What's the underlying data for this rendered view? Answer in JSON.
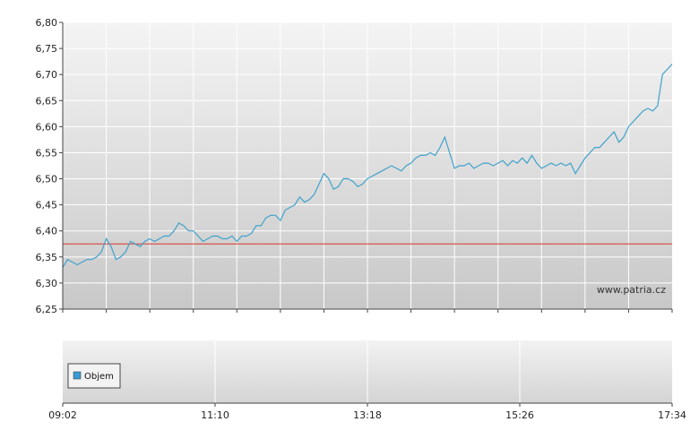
{
  "watermark": "www.patria.cz",
  "colors": {
    "line": "#3fa2cc",
    "reference": "#d9342b",
    "grid": "#ffffff",
    "legend_swatch": "#3a9bd5"
  },
  "chart_data": [
    {
      "type": "line",
      "ylim": [
        6.25,
        6.8
      ],
      "y_ticks": [
        "6,25",
        "6,30",
        "6,35",
        "6,40",
        "6,45",
        "6,50",
        "6,55",
        "6,60",
        "6,65",
        "6,70",
        "6,75",
        "6,80"
      ],
      "x_ticks": [
        "09:02",
        "11:10",
        "13:18",
        "15:26",
        "17:34"
      ],
      "reference_line": 6.375,
      "grid": true,
      "series": [
        {
          "values": [
            6.33,
            6.345,
            6.34,
            6.335,
            6.34,
            6.345,
            6.345,
            6.35,
            6.36,
            6.385,
            6.37,
            6.345,
            6.35,
            6.36,
            6.38,
            6.375,
            6.37,
            6.38,
            6.385,
            6.38,
            6.385,
            6.39,
            6.39,
            6.4,
            6.415,
            6.41,
            6.4,
            6.4,
            6.39,
            6.38,
            6.385,
            6.39,
            6.39,
            6.385,
            6.385,
            6.39,
            6.38,
            6.39,
            6.39,
            6.395,
            6.41,
            6.41,
            6.425,
            6.43,
            6.43,
            6.42,
            6.44,
            6.445,
            6.45,
            6.465,
            6.455,
            6.46,
            6.47,
            6.49,
            6.51,
            6.5,
            6.48,
            6.485,
            6.5,
            6.5,
            6.495,
            6.485,
            6.49,
            6.5,
            6.505,
            6.51,
            6.515,
            6.52,
            6.525,
            6.52,
            6.515,
            6.525,
            6.53,
            6.54,
            6.545,
            6.545,
            6.55,
            6.545,
            6.56,
            6.58,
            6.55,
            6.52,
            6.525,
            6.525,
            6.53,
            6.52,
            6.525,
            6.53,
            6.53,
            6.525,
            6.53,
            6.535,
            6.525,
            6.535,
            6.53,
            6.54,
            6.53,
            6.545,
            6.53,
            6.52,
            6.525,
            6.53,
            6.525,
            6.53,
            6.525,
            6.53,
            6.51,
            6.525,
            6.54,
            6.55,
            6.56,
            6.56,
            6.57,
            6.58,
            6.59,
            6.57,
            6.58,
            6.6,
            6.61,
            6.62,
            6.63,
            6.635,
            6.63,
            6.64,
            6.7,
            6.71,
            6.72
          ]
        }
      ]
    },
    {
      "type": "bar",
      "legend": [
        "Objem"
      ],
      "legend_position": "bottom-left",
      "x_ticks": [
        "09:02",
        "11:10",
        "13:18",
        "15:26",
        "17:34"
      ]
    }
  ]
}
